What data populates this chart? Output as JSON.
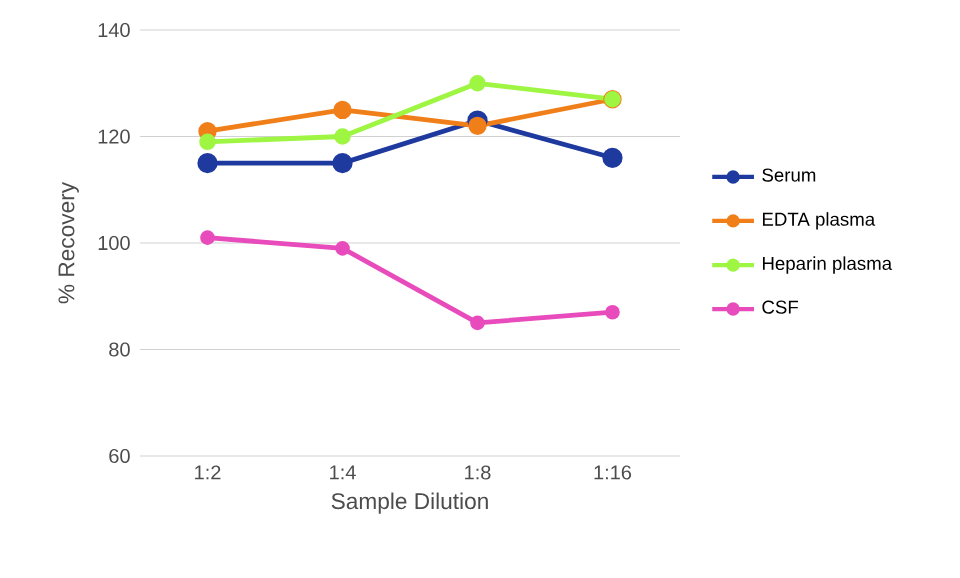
{
  "chart_data": {
    "type": "line",
    "xlabel": "Sample Dilution",
    "ylabel": "% Recovery",
    "categories": [
      "1:2",
      "1:4",
      "1:8",
      "1:16"
    ],
    "series": [
      {
        "name": "Serum",
        "color": "#1f3a9e",
        "values": [
          115,
          115,
          123,
          116
        ]
      },
      {
        "name": "EDTA plasma",
        "color": "#f07f1a",
        "values": [
          121,
          125,
          122,
          127
        ]
      },
      {
        "name": "Heparin plasma",
        "color": "#9ef542",
        "values": [
          119,
          120,
          130,
          127
        ]
      },
      {
        "name": "CSF",
        "color": "#e84bbb",
        "values": [
          101,
          99,
          85,
          87
        ]
      }
    ],
    "ylim": [
      60,
      140
    ],
    "yticks": [
      60,
      80,
      100,
      120,
      140
    ],
    "grid": "y",
    "legend": "right",
    "marker": "circle",
    "line_style": "solid"
  }
}
